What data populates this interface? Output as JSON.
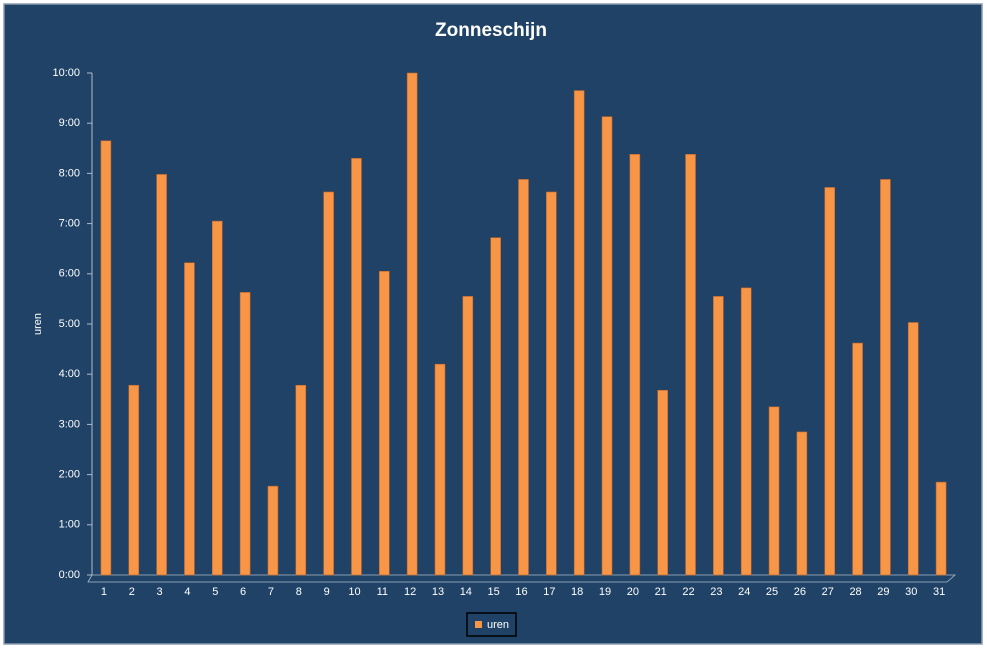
{
  "chart_data": {
    "type": "bar",
    "title": "Zonneschijn",
    "y_label": "uren",
    "categories": [
      "1",
      "2",
      "3",
      "4",
      "5",
      "6",
      "7",
      "8",
      "9",
      "10",
      "11",
      "12",
      "13",
      "14",
      "15",
      "16",
      "17",
      "18",
      "19",
      "20",
      "21",
      "22",
      "23",
      "24",
      "25",
      "26",
      "27",
      "28",
      "29",
      "30",
      "31"
    ],
    "series": [
      {
        "name": "uren",
        "color": "#f79646",
        "values": [
          8.65,
          3.78,
          7.98,
          6.22,
          7.05,
          5.63,
          1.77,
          3.78,
          7.63,
          8.3,
          6.05,
          10.0,
          4.2,
          5.55,
          6.72,
          7.88,
          7.63,
          9.65,
          9.13,
          8.38,
          3.68,
          8.38,
          5.55,
          5.72,
          3.35,
          2.85,
          7.72,
          4.62,
          7.88,
          5.03,
          1.85
        ]
      }
    ],
    "ylim": [
      0,
      10
    ],
    "yticks": [
      {
        "value": 0,
        "label": "0:00"
      },
      {
        "value": 1,
        "label": "1:00"
      },
      {
        "value": 2,
        "label": "2:00"
      },
      {
        "value": 3,
        "label": "3:00"
      },
      {
        "value": 4,
        "label": "4:00"
      },
      {
        "value": 5,
        "label": "5:00"
      },
      {
        "value": 6,
        "label": "6:00"
      },
      {
        "value": 7,
        "label": "7:00"
      },
      {
        "value": 8,
        "label": "8:00"
      },
      {
        "value": 9,
        "label": "9:00"
      },
      {
        "value": 10,
        "label": "10:00"
      }
    ],
    "grid": false,
    "legend": "bottom"
  }
}
